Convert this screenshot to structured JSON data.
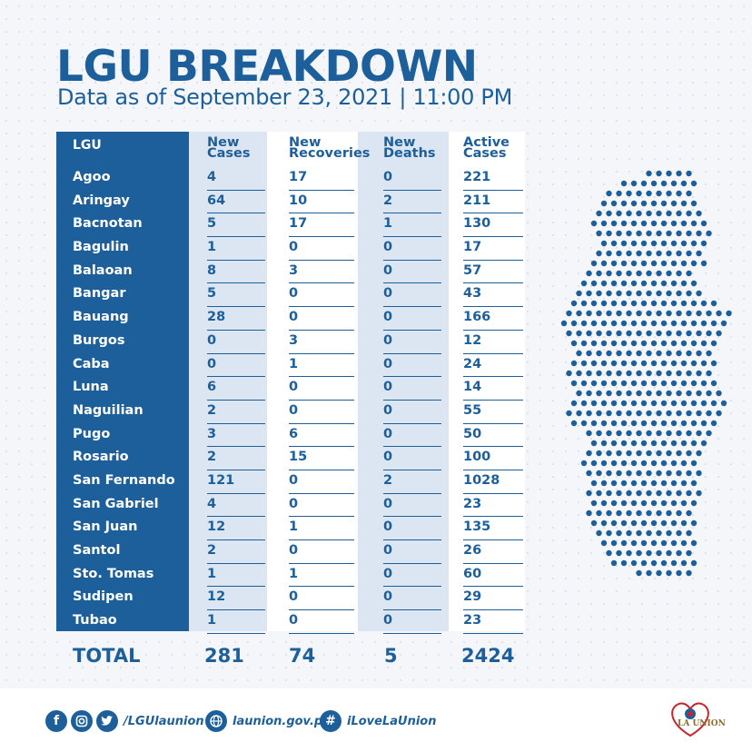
{
  "title": "LGU BREAKDOWN",
  "subtitle": "Data as of September 23, 2021 | 11:00 PM",
  "table": {
    "headers": {
      "lgu": "LGU",
      "new_cases": [
        "New",
        "Cases"
      ],
      "new_recoveries": [
        "New",
        "Recoveries"
      ],
      "new_deaths": [
        "New",
        "Deaths"
      ],
      "active_cases": [
        "Active",
        "Cases"
      ]
    },
    "rows": [
      {
        "lgu": "Agoo",
        "new_cases": "4",
        "new_recoveries": "17",
        "new_deaths": "0",
        "active_cases": "221"
      },
      {
        "lgu": "Aringay",
        "new_cases": "64",
        "new_recoveries": "10",
        "new_deaths": "2",
        "active_cases": "211"
      },
      {
        "lgu": "Bacnotan",
        "new_cases": "5",
        "new_recoveries": "17",
        "new_deaths": "1",
        "active_cases": "130"
      },
      {
        "lgu": "Bagulin",
        "new_cases": "1",
        "new_recoveries": "0",
        "new_deaths": "0",
        "active_cases": "17"
      },
      {
        "lgu": "Balaoan",
        "new_cases": "8",
        "new_recoveries": "3",
        "new_deaths": "0",
        "active_cases": "57"
      },
      {
        "lgu": "Bangar",
        "new_cases": "5",
        "new_recoveries": "0",
        "new_deaths": "0",
        "active_cases": "43"
      },
      {
        "lgu": "Bauang",
        "new_cases": "28",
        "new_recoveries": "0",
        "new_deaths": "0",
        "active_cases": "166"
      },
      {
        "lgu": "Burgos",
        "new_cases": "0",
        "new_recoveries": "3",
        "new_deaths": "0",
        "active_cases": "12"
      },
      {
        "lgu": "Caba",
        "new_cases": "0",
        "new_recoveries": "1",
        "new_deaths": "0",
        "active_cases": "24"
      },
      {
        "lgu": "Luna",
        "new_cases": "6",
        "new_recoveries": "0",
        "new_deaths": "0",
        "active_cases": "14"
      },
      {
        "lgu": "Naguilian",
        "new_cases": "2",
        "new_recoveries": "0",
        "new_deaths": "0",
        "active_cases": "55"
      },
      {
        "lgu": "Pugo",
        "new_cases": "3",
        "new_recoveries": "6",
        "new_deaths": "0",
        "active_cases": "50"
      },
      {
        "lgu": "Rosario",
        "new_cases": "2",
        "new_recoveries": "15",
        "new_deaths": "0",
        "active_cases": "100"
      },
      {
        "lgu": "San Fernando",
        "new_cases": "121",
        "new_recoveries": "0",
        "new_deaths": "2",
        "active_cases": "1028"
      },
      {
        "lgu": "San Gabriel",
        "new_cases": "4",
        "new_recoveries": "0",
        "new_deaths": "0",
        "active_cases": "23"
      },
      {
        "lgu": "San Juan",
        "new_cases": "12",
        "new_recoveries": "1",
        "new_deaths": "0",
        "active_cases": "135"
      },
      {
        "lgu": "Santol",
        "new_cases": "2",
        "new_recoveries": "0",
        "new_deaths": "0",
        "active_cases": "26"
      },
      {
        "lgu": "Sto. Tomas",
        "new_cases": "1",
        "new_recoveries": "1",
        "new_deaths": "0",
        "active_cases": "60"
      },
      {
        "lgu": "Sudipen",
        "new_cases": "12",
        "new_recoveries": "0",
        "new_deaths": "0",
        "active_cases": "29"
      },
      {
        "lgu": "Tubao",
        "new_cases": "1",
        "new_recoveries": "0",
        "new_deaths": "0",
        "active_cases": "23"
      }
    ],
    "total": {
      "label": "TOTAL",
      "new_cases": "281",
      "new_recoveries": "74",
      "new_deaths": "5",
      "active_cases": "2424"
    }
  },
  "footer": {
    "social_handle": "/LGUlaunion",
    "website": "launion.gov.ph",
    "hashtag": "iLoveLaUnion",
    "icons": [
      "facebook-icon",
      "instagram-icon",
      "twitter-icon",
      "globe-icon",
      "hashtag-icon"
    ],
    "logo_text": "LA UNION"
  },
  "colors": {
    "primary": "#1d5f9b",
    "band_light": "#dbe6f2",
    "background": "#f4f6fa"
  }
}
